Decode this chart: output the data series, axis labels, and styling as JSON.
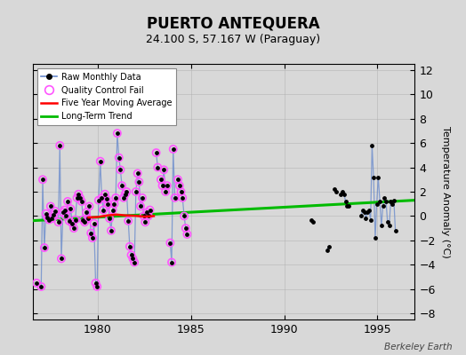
{
  "title": "PUERTO ANTEQUERA",
  "subtitle": "24.100 S, 57.167 W (Paraguay)",
  "ylabel": "Temperature Anomaly (°C)",
  "watermark": "Berkeley Earth",
  "background_color": "#d8d8d8",
  "plot_bg_color": "#d8d8d8",
  "xlim": [
    1976.5,
    1997.0
  ],
  "ylim": [
    -8.5,
    12.5
  ],
  "yticks": [
    -8,
    -6,
    -4,
    -2,
    0,
    2,
    4,
    6,
    8,
    10,
    12
  ],
  "xticks": [
    1980,
    1985,
    1990,
    1995
  ],
  "raw_data": [
    [
      1976.71,
      -5.5
    ],
    [
      1976.96,
      -5.8
    ],
    [
      1977.04,
      3.0
    ],
    [
      1977.13,
      -2.6
    ],
    [
      1977.21,
      0.2
    ],
    [
      1977.29,
      -0.1
    ],
    [
      1977.38,
      -0.3
    ],
    [
      1977.46,
      0.8
    ],
    [
      1977.54,
      -0.2
    ],
    [
      1977.63,
      0.1
    ],
    [
      1977.71,
      0.4
    ],
    [
      1977.88,
      -0.5
    ],
    [
      1977.96,
      5.8
    ],
    [
      1978.04,
      -3.5
    ],
    [
      1978.13,
      0.3
    ],
    [
      1978.21,
      0.5
    ],
    [
      1978.29,
      0.0
    ],
    [
      1978.38,
      1.2
    ],
    [
      1978.46,
      -0.4
    ],
    [
      1978.54,
      0.6
    ],
    [
      1978.63,
      -0.6
    ],
    [
      1978.71,
      -1.0
    ],
    [
      1978.79,
      -0.3
    ],
    [
      1978.88,
      1.5
    ],
    [
      1978.96,
      1.8
    ],
    [
      1979.04,
      1.5
    ],
    [
      1979.13,
      1.2
    ],
    [
      1979.21,
      -0.3
    ],
    [
      1979.29,
      -0.5
    ],
    [
      1979.38,
      0.3
    ],
    [
      1979.46,
      -0.2
    ],
    [
      1979.54,
      0.8
    ],
    [
      1979.63,
      -1.4
    ],
    [
      1979.71,
      -1.8
    ],
    [
      1979.79,
      -0.6
    ],
    [
      1979.88,
      -5.5
    ],
    [
      1979.96,
      -5.8
    ],
    [
      1980.04,
      1.3
    ],
    [
      1980.13,
      4.5
    ],
    [
      1980.21,
      1.5
    ],
    [
      1980.29,
      0.5
    ],
    [
      1980.38,
      1.8
    ],
    [
      1980.46,
      1.4
    ],
    [
      1980.54,
      1.0
    ],
    [
      1980.63,
      -0.2
    ],
    [
      1980.71,
      -1.2
    ],
    [
      1980.79,
      0.5
    ],
    [
      1980.88,
      1.0
    ],
    [
      1980.96,
      1.5
    ],
    [
      1981.04,
      6.8
    ],
    [
      1981.13,
      4.8
    ],
    [
      1981.21,
      3.8
    ],
    [
      1981.29,
      2.5
    ],
    [
      1981.38,
      1.5
    ],
    [
      1981.46,
      1.8
    ],
    [
      1981.54,
      2.0
    ],
    [
      1981.63,
      -0.4
    ],
    [
      1981.71,
      -2.5
    ],
    [
      1981.79,
      -3.2
    ],
    [
      1981.88,
      -3.5
    ],
    [
      1981.96,
      -3.8
    ],
    [
      1982.04,
      2.0
    ],
    [
      1982.13,
      3.5
    ],
    [
      1982.21,
      2.8
    ],
    [
      1982.29,
      0.8
    ],
    [
      1982.38,
      1.5
    ],
    [
      1982.46,
      0.0
    ],
    [
      1982.54,
      -0.5
    ],
    [
      1982.63,
      0.3
    ],
    [
      1982.71,
      0.0
    ],
    [
      1982.79,
      0.5
    ],
    [
      1983.13,
      5.2
    ],
    [
      1983.21,
      4.0
    ],
    [
      1983.38,
      3.0
    ],
    [
      1983.46,
      2.5
    ],
    [
      1983.54,
      3.8
    ],
    [
      1983.63,
      2.0
    ],
    [
      1983.71,
      2.5
    ],
    [
      1983.88,
      -2.2
    ],
    [
      1983.96,
      -3.8
    ],
    [
      1984.04,
      5.5
    ],
    [
      1984.13,
      1.5
    ],
    [
      1984.29,
      3.0
    ],
    [
      1984.38,
      2.5
    ],
    [
      1984.46,
      2.0
    ],
    [
      1984.54,
      1.5
    ],
    [
      1984.63,
      0.0
    ],
    [
      1984.71,
      -1.0
    ],
    [
      1984.79,
      -1.5
    ],
    [
      1991.46,
      -0.3
    ],
    [
      1991.54,
      -0.5
    ],
    [
      1992.29,
      -2.8
    ],
    [
      1992.38,
      -2.5
    ],
    [
      1992.71,
      2.2
    ],
    [
      1992.79,
      2.0
    ],
    [
      1993.04,
      1.8
    ],
    [
      1993.13,
      2.0
    ],
    [
      1993.21,
      1.8
    ],
    [
      1993.29,
      1.2
    ],
    [
      1993.38,
      0.8
    ],
    [
      1993.46,
      0.8
    ],
    [
      1994.13,
      0.0
    ],
    [
      1994.21,
      0.5
    ],
    [
      1994.29,
      0.3
    ],
    [
      1994.38,
      -0.2
    ],
    [
      1994.46,
      0.3
    ],
    [
      1994.54,
      0.5
    ],
    [
      1994.63,
      -0.3
    ],
    [
      1994.71,
      5.8
    ],
    [
      1994.79,
      3.2
    ],
    [
      1994.88,
      -1.8
    ],
    [
      1994.96,
      1.0
    ],
    [
      1995.04,
      3.2
    ],
    [
      1995.13,
      1.2
    ],
    [
      1995.21,
      -0.8
    ],
    [
      1995.29,
      0.8
    ],
    [
      1995.38,
      1.5
    ],
    [
      1995.46,
      1.2
    ],
    [
      1995.54,
      -0.5
    ],
    [
      1995.63,
      -0.8
    ],
    [
      1995.71,
      1.2
    ],
    [
      1995.79,
      1.0
    ],
    [
      1995.88,
      1.3
    ],
    [
      1995.96,
      -1.2
    ]
  ],
  "qc_fail_indices": [
    0,
    1,
    2,
    3,
    4,
    5,
    6,
    7,
    8,
    9,
    10,
    11,
    12,
    13,
    14,
    15,
    16,
    17,
    18,
    19,
    20,
    21,
    22,
    23,
    24,
    25,
    26,
    27,
    28,
    29,
    30,
    31,
    32,
    33,
    34,
    35,
    36,
    37,
    38,
    39,
    40,
    41,
    42,
    43,
    44,
    45,
    46,
    47,
    48,
    49,
    50,
    51,
    52,
    53,
    54,
    55,
    56,
    57,
    58,
    59,
    60,
    61,
    62,
    63,
    64,
    65,
    66,
    67,
    68,
    69,
    70,
    71,
    72,
    73,
    74,
    75,
    76,
    77,
    78,
    79,
    80,
    81,
    82,
    83,
    84,
    85,
    86,
    87,
    88
  ],
  "moving_avg": [
    [
      1979.5,
      -0.12
    ],
    [
      1980.0,
      -0.08
    ],
    [
      1980.5,
      0.05
    ],
    [
      1981.0,
      0.12
    ],
    [
      1981.5,
      0.05
    ],
    [
      1982.0,
      0.02
    ],
    [
      1982.5,
      -0.05
    ],
    [
      1983.0,
      0.0
    ]
  ],
  "trend_x": [
    1976.5,
    1997.0
  ],
  "trend_y": [
    -0.38,
    1.3
  ],
  "raw_line_color": "#6688cc",
  "raw_line_alpha": 0.75,
  "raw_dot_color": "#000000",
  "qc_color": "#ff55ff",
  "moving_avg_color": "#ff0000",
  "trend_color": "#00bb00",
  "grid_color": "#aaaaaa",
  "title_fontsize": 12,
  "subtitle_fontsize": 9,
  "tick_fontsize": 9,
  "ylabel_fontsize": 8
}
